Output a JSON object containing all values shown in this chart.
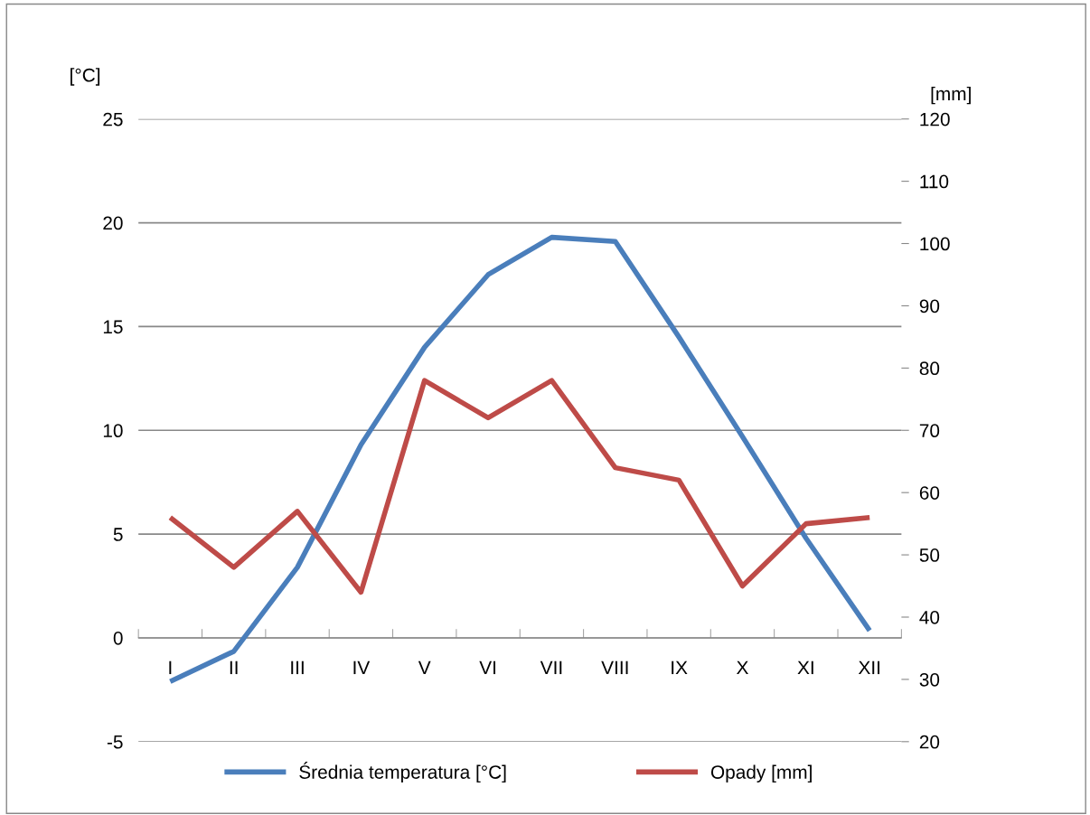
{
  "chart_data": {
    "type": "line",
    "categories": [
      "I",
      "II",
      "III",
      "IV",
      "V",
      "VI",
      "VII",
      "VIII",
      "IX",
      "X",
      "XI",
      "XII"
    ],
    "ylabel": "[°C]",
    "y2label": "[mm]",
    "ylim": [
      -5,
      25
    ],
    "yticks": [
      -5,
      0,
      5,
      10,
      15,
      20,
      25
    ],
    "y2lim": [
      20,
      120
    ],
    "y2ticks": [
      20,
      30,
      40,
      50,
      60,
      70,
      80,
      90,
      100,
      110,
      120
    ],
    "grid": "y",
    "legend": "bottom",
    "line_style": "solid",
    "series": [
      {
        "name": "Średnia temperatura [°C]",
        "color": "#4a7ebb",
        "values": [
          -2.1,
          -0.65,
          3.4,
          9.3,
          14.0,
          17.5,
          19.3,
          19.1,
          14.5,
          9.7,
          4.8,
          0.35
        ]
      },
      {
        "name": "Opady [mm]",
        "color": "#be4b48",
        "axis": "y2",
        "values": [
          56,
          48,
          57,
          44,
          78,
          72,
          78,
          64,
          62,
          45,
          55,
          56
        ]
      }
    ]
  }
}
